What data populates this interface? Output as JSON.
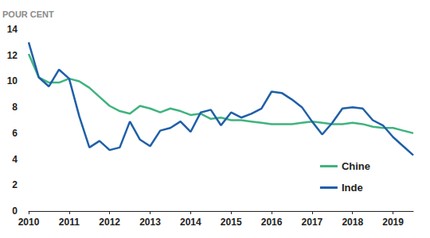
{
  "chart_data": {
    "type": "line",
    "ylabel": "POUR CENT",
    "x": [
      2010,
      2010.25,
      2010.5,
      2010.75,
      2011,
      2011.25,
      2011.5,
      2011.75,
      2012,
      2012.25,
      2012.5,
      2012.75,
      2013,
      2013.25,
      2013.5,
      2013.75,
      2014,
      2014.25,
      2014.5,
      2014.75,
      2015,
      2015.25,
      2015.5,
      2015.75,
      2016,
      2016.25,
      2016.5,
      2016.75,
      2017,
      2017.25,
      2017.5,
      2017.75,
      2018,
      2018.25,
      2018.5,
      2018.75,
      2019,
      2019.25,
      2019.5
    ],
    "series": [
      {
        "name": "Chine",
        "color": "#3fb37f",
        "line_style": "solid",
        "values": [
          12.1,
          10.3,
          9.9,
          9.9,
          10.2,
          10.0,
          9.5,
          8.8,
          8.1,
          7.7,
          7.5,
          8.1,
          7.9,
          7.6,
          7.9,
          7.7,
          7.4,
          7.5,
          7.1,
          7.2,
          7.0,
          7.0,
          6.9,
          6.8,
          6.7,
          6.7,
          6.7,
          6.8,
          6.9,
          6.8,
          6.7,
          6.7,
          6.8,
          6.7,
          6.5,
          6.4,
          6.4,
          6.2,
          6.0
        ]
      },
      {
        "name": "Inde",
        "color": "#1f5fa8",
        "line_style": "solid",
        "values": [
          13.0,
          10.3,
          9.6,
          10.9,
          10.2,
          7.3,
          4.9,
          5.4,
          4.7,
          4.9,
          6.9,
          5.5,
          5.0,
          6.2,
          6.4,
          6.9,
          6.1,
          7.6,
          7.8,
          6.6,
          7.6,
          7.2,
          7.5,
          7.9,
          9.2,
          9.1,
          8.6,
          8.0,
          6.9,
          5.9,
          6.8,
          7.9,
          8.0,
          7.9,
          7.0,
          6.6,
          5.7,
          5.0,
          4.3
        ]
      }
    ],
    "xlim": [
      2010,
      2019.5
    ],
    "xticks": [
      2010,
      2011,
      2012,
      2013,
      2014,
      2015,
      2016,
      2017,
      2018,
      2019
    ],
    "ylim": [
      0,
      14
    ],
    "yticks": [
      0,
      2,
      4,
      6,
      8,
      10,
      12,
      14
    ],
    "grid": false,
    "legend": "lower right"
  }
}
